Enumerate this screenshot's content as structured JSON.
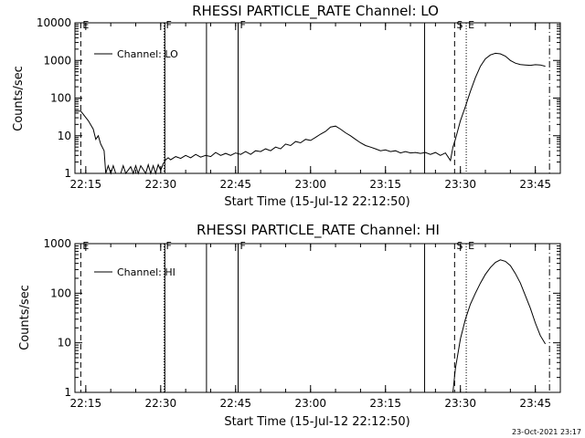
{
  "footer": {
    "timestamp": "23-Oct-2021 23:17"
  },
  "chart_data": [
    {
      "type": "line",
      "title": "RHESSI PARTICLE_RATE Channel: LO",
      "xlabel": "Start Time (15-Jul-12 22:12:50)",
      "ylabel": "Counts/sec",
      "yscale": "log",
      "xlim": [
        "22:12:50",
        "23:50:00"
      ],
      "ylim": [
        1,
        10000
      ],
      "xticks": [
        "22:15",
        "22:30",
        "22:45",
        "23:00",
        "23:15",
        "23:30",
        "23:45"
      ],
      "yticks": [
        "1",
        "10",
        "100",
        "1000",
        "10000"
      ],
      "legend": {
        "label": "Channel: LO",
        "placement": "top-left"
      },
      "series": [
        {
          "name": "Channel: LO",
          "color": "#000000",
          "points": [
            [
              "22:12:50",
              45
            ],
            [
              "22:14:00",
              45
            ],
            [
              "22:15:30",
              25
            ],
            [
              "22:16:30",
              15
            ],
            [
              "22:17:00",
              8
            ],
            [
              "22:17:30",
              10
            ],
            [
              "22:18:00",
              6
            ],
            [
              "22:18:40",
              4
            ],
            [
              "22:19:00",
              1
            ],
            [
              "22:19:30",
              1.6
            ],
            [
              "22:20:00",
              1
            ],
            [
              "22:20:30",
              1.6
            ],
            [
              "22:21:00",
              1
            ],
            [
              "22:22:00",
              1
            ],
            [
              "22:22:30",
              1.6
            ],
            [
              "22:23:00",
              1
            ],
            [
              "22:24:00",
              1.5
            ],
            [
              "22:24:30",
              1
            ],
            [
              "22:25:00",
              1.6
            ],
            [
              "22:25:30",
              1
            ],
            [
              "22:26:00",
              1.6
            ],
            [
              "22:27:00",
              1
            ],
            [
              "22:27:30",
              1.7
            ],
            [
              "22:28:00",
              1
            ],
            [
              "22:28:30",
              1.6
            ],
            [
              "22:29:00",
              1
            ],
            [
              "22:29:30",
              1.7
            ],
            [
              "22:30:00",
              1.2
            ],
            [
              "22:30:30",
              1.8
            ],
            [
              "22:31:00",
              2.3
            ],
            [
              "22:31:30",
              2.6
            ],
            [
              "22:32:00",
              2.3
            ],
            [
              "22:33:00",
              2.8
            ],
            [
              "22:34:00",
              2.5
            ],
            [
              "22:35:00",
              3.0
            ],
            [
              "22:36:00",
              2.6
            ],
            [
              "22:37:00",
              3.2
            ],
            [
              "22:38:00",
              2.7
            ],
            [
              "22:39:00",
              3.0
            ],
            [
              "22:40:00",
              2.8
            ],
            [
              "22:41:00",
              3.6
            ],
            [
              "22:42:00",
              3.0
            ],
            [
              "22:43:00",
              3.4
            ],
            [
              "22:44:00",
              3.0
            ],
            [
              "22:45:00",
              3.5
            ],
            [
              "22:46:00",
              3.2
            ],
            [
              "22:47:00",
              3.8
            ],
            [
              "22:48:00",
              3.2
            ],
            [
              "22:49:00",
              4.0
            ],
            [
              "22:50:00",
              3.8
            ],
            [
              "22:51:00",
              4.5
            ],
            [
              "22:52:00",
              4.0
            ],
            [
              "22:53:00",
              5.0
            ],
            [
              "22:54:00",
              4.5
            ],
            [
              "22:55:00",
              6.0
            ],
            [
              "22:56:00",
              5.5
            ],
            [
              "22:57:00",
              7.0
            ],
            [
              "22:58:00",
              6.5
            ],
            [
              "22:59:00",
              8.0
            ],
            [
              "23:00:00",
              7.5
            ],
            [
              "23:01:00",
              9.0
            ],
            [
              "23:02:00",
              11
            ],
            [
              "23:03:00",
              13
            ],
            [
              "23:04:00",
              17
            ],
            [
              "23:05:00",
              18
            ],
            [
              "23:06:00",
              15
            ],
            [
              "23:07:00",
              12
            ],
            [
              "23:08:00",
              10
            ],
            [
              "23:09:00",
              8.0
            ],
            [
              "23:10:00",
              6.5
            ],
            [
              "23:11:00",
              5.5
            ],
            [
              "23:12:00",
              5.0
            ],
            [
              "23:13:00",
              4.5
            ],
            [
              "23:14:00",
              4.0
            ],
            [
              "23:15:00",
              4.2
            ],
            [
              "23:16:00",
              3.8
            ],
            [
              "23:17:00",
              4.0
            ],
            [
              "23:18:00",
              3.5
            ],
            [
              "23:19:00",
              3.8
            ],
            [
              "23:20:00",
              3.5
            ],
            [
              "23:21:00",
              3.6
            ],
            [
              "23:22:00",
              3.4
            ],
            [
              "23:23:00",
              3.6
            ],
            [
              "23:24:00",
              3.2
            ],
            [
              "23:25:00",
              3.6
            ],
            [
              "23:26:00",
              3.0
            ],
            [
              "23:27:00",
              3.5
            ],
            [
              "23:28:00",
              2.2
            ],
            [
              "23:28:30",
              5.0
            ],
            [
              "23:29:00",
              8.0
            ],
            [
              "23:30:00",
              25
            ],
            [
              "23:31:00",
              60
            ],
            [
              "23:32:00",
              150
            ],
            [
              "23:33:00",
              350
            ],
            [
              "23:34:00",
              700
            ],
            [
              "23:35:00",
              1100
            ],
            [
              "23:36:00",
              1400
            ],
            [
              "23:37:00",
              1550
            ],
            [
              "23:38:00",
              1500
            ],
            [
              "23:39:00",
              1300
            ],
            [
              "23:40:00",
              1000
            ],
            [
              "23:41:00",
              850
            ],
            [
              "23:42:00",
              780
            ],
            [
              "23:43:00",
              760
            ],
            [
              "23:44:00",
              740
            ],
            [
              "23:45:00",
              770
            ],
            [
              "23:46:00",
              760
            ],
            [
              "23:47:00",
              700
            ]
          ]
        }
      ],
      "markers": [
        {
          "time": "22:14:00",
          "style": "dashed",
          "label": "E"
        },
        {
          "time": "22:30:40",
          "style": "dotted",
          "label": "F"
        },
        {
          "time": "22:30:50",
          "style": "solid",
          "label": ""
        },
        {
          "time": "22:39:10",
          "style": "solid",
          "label": ""
        },
        {
          "time": "22:45:30",
          "style": "solid",
          "label": "F"
        },
        {
          "time": "23:22:50",
          "style": "solid",
          "label": ""
        },
        {
          "time": "23:28:50",
          "style": "dashed",
          "label": "S"
        },
        {
          "time": "23:31:10",
          "style": "dotted",
          "label": "E"
        },
        {
          "time": "23:47:50",
          "style": "dashdot",
          "label": ""
        }
      ]
    },
    {
      "type": "line",
      "title": "RHESSI PARTICLE_RATE Channel: HI",
      "xlabel": "Start Time (15-Jul-12 22:12:50)",
      "ylabel": "Counts/sec",
      "yscale": "log",
      "xlim": [
        "22:12:50",
        "23:50:00"
      ],
      "ylim": [
        1,
        1000
      ],
      "xticks": [
        "22:15",
        "22:30",
        "22:45",
        "23:00",
        "23:15",
        "23:30",
        "23:45"
      ],
      "yticks": [
        "1",
        "10",
        "100",
        "1000"
      ],
      "legend": {
        "label": "Channel: HI",
        "placement": "top-left"
      },
      "series": [
        {
          "name": "Channel: HI",
          "color": "#000000",
          "points": [
            [
              "23:28:30",
              1
            ],
            [
              "23:29:00",
              3
            ],
            [
              "23:30:00",
              12
            ],
            [
              "23:31:00",
              30
            ],
            [
              "23:32:00",
              60
            ],
            [
              "23:33:00",
              100
            ],
            [
              "23:34:00",
              160
            ],
            [
              "23:35:00",
              240
            ],
            [
              "23:36:00",
              330
            ],
            [
              "23:37:00",
              420
            ],
            [
              "23:38:00",
              470
            ],
            [
              "23:39:00",
              440
            ],
            [
              "23:40:00",
              360
            ],
            [
              "23:41:00",
              250
            ],
            [
              "23:42:00",
              160
            ],
            [
              "23:43:00",
              90
            ],
            [
              "23:44:00",
              50
            ],
            [
              "23:45:00",
              25
            ],
            [
              "23:46:00",
              14
            ],
            [
              "23:47:00",
              9.5
            ]
          ]
        }
      ],
      "markers": [
        {
          "time": "22:14:00",
          "style": "dashed",
          "label": "E"
        },
        {
          "time": "22:30:40",
          "style": "dotted",
          "label": "F"
        },
        {
          "time": "22:30:50",
          "style": "solid",
          "label": ""
        },
        {
          "time": "22:39:10",
          "style": "solid",
          "label": ""
        },
        {
          "time": "22:45:30",
          "style": "solid",
          "label": "F"
        },
        {
          "time": "23:22:50",
          "style": "solid",
          "label": ""
        },
        {
          "time": "23:28:50",
          "style": "dashed",
          "label": "S"
        },
        {
          "time": "23:31:10",
          "style": "dotted",
          "label": "E"
        },
        {
          "time": "23:47:50",
          "style": "dashdot",
          "label": ""
        }
      ]
    }
  ]
}
